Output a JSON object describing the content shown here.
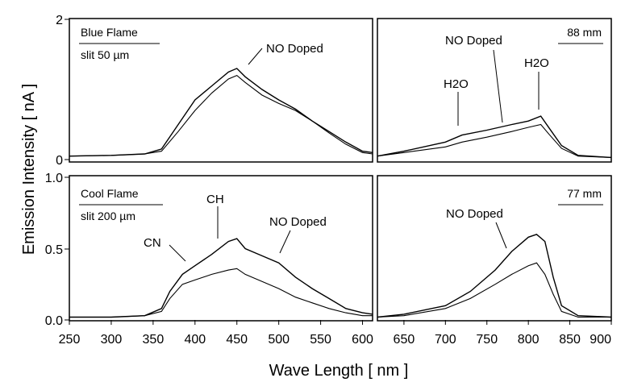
{
  "figure": {
    "ylabel": "Emission Intensity [ nA ]",
    "xlabel": "Wave Length [ nm ]",
    "x_ticks": [
      "250",
      "300",
      "350",
      "400",
      "450",
      "500",
      "550",
      "600",
      "650",
      "700",
      "750",
      "800",
      "850",
      "900"
    ]
  },
  "chart_data": [
    {
      "type": "line",
      "panel": "top-left",
      "x_range": [
        250,
        612
      ],
      "ylim": [
        0,
        2
      ],
      "y_tick_labels": [
        "0",
        "2"
      ],
      "box_label": [
        "Blue Flame",
        "slit 50 µm"
      ],
      "annotations": [
        "NO Doped"
      ],
      "series": [
        {
          "name": "NO Doped",
          "x": [
            250,
            300,
            340,
            360,
            380,
            400,
            420,
            440,
            450,
            460,
            480,
            500,
            520,
            540,
            560,
            580,
            600,
            612
          ],
          "y": [
            0.05,
            0.06,
            0.08,
            0.15,
            0.5,
            0.85,
            1.05,
            1.25,
            1.3,
            1.18,
            1.0,
            0.85,
            0.72,
            0.55,
            0.4,
            0.25,
            0.12,
            0.1
          ]
        },
        {
          "values_only": true,
          "x": [
            250,
            300,
            340,
            360,
            380,
            400,
            420,
            440,
            450,
            460,
            480,
            500,
            520,
            540,
            560,
            580,
            600,
            612
          ],
          "y": [
            0.05,
            0.06,
            0.08,
            0.12,
            0.4,
            0.7,
            0.95,
            1.15,
            1.2,
            1.1,
            0.92,
            0.8,
            0.7,
            0.55,
            0.38,
            0.22,
            0.1,
            0.08
          ]
        }
      ]
    },
    {
      "type": "line",
      "panel": "top-right",
      "x_range": [
        618,
        900
      ],
      "ylim": [
        0,
        2
      ],
      "box_label": [
        "88 mm"
      ],
      "annotations": [
        "NO Doped",
        "H2O",
        "H2O"
      ],
      "series": [
        {
          "name": "NO Doped",
          "x": [
            618,
            650,
            700,
            720,
            750,
            780,
            800,
            815,
            825,
            840,
            860,
            900
          ],
          "y": [
            0.05,
            0.12,
            0.25,
            0.35,
            0.42,
            0.5,
            0.55,
            0.62,
            0.45,
            0.2,
            0.06,
            0.03
          ]
        },
        {
          "values_only": true,
          "x": [
            618,
            650,
            700,
            720,
            750,
            780,
            800,
            815,
            825,
            840,
            860,
            900
          ],
          "y": [
            0.05,
            0.1,
            0.18,
            0.25,
            0.32,
            0.4,
            0.46,
            0.5,
            0.36,
            0.16,
            0.05,
            0.03
          ]
        }
      ]
    },
    {
      "type": "line",
      "panel": "bottom-left",
      "x_range": [
        250,
        612
      ],
      "ylim": [
        0,
        1.0
      ],
      "y_tick_labels": [
        "0.0",
        "0.5",
        "1.0"
      ],
      "box_label": [
        "Cool Flame",
        "slit 200 µm"
      ],
      "annotations": [
        "CN",
        "CH",
        "NO Doped"
      ],
      "series": [
        {
          "name": "NO Doped",
          "x": [
            250,
            300,
            340,
            360,
            370,
            385,
            400,
            420,
            440,
            450,
            460,
            480,
            500,
            520,
            540,
            560,
            580,
            600,
            612
          ],
          "y": [
            0.02,
            0.02,
            0.03,
            0.08,
            0.2,
            0.32,
            0.38,
            0.46,
            0.55,
            0.57,
            0.5,
            0.45,
            0.4,
            0.3,
            0.22,
            0.15,
            0.08,
            0.05,
            0.04
          ]
        },
        {
          "values_only": true,
          "x": [
            250,
            300,
            340,
            360,
            370,
            385,
            400,
            420,
            440,
            450,
            460,
            480,
            500,
            520,
            540,
            560,
            580,
            600,
            612
          ],
          "y": [
            0.02,
            0.02,
            0.03,
            0.06,
            0.15,
            0.25,
            0.28,
            0.32,
            0.35,
            0.36,
            0.32,
            0.27,
            0.22,
            0.16,
            0.12,
            0.08,
            0.05,
            0.03,
            0.03
          ]
        }
      ]
    },
    {
      "type": "line",
      "panel": "bottom-right",
      "x_range": [
        618,
        900
      ],
      "ylim": [
        0,
        1.0
      ],
      "box_label": [
        "77 mm"
      ],
      "annotations": [
        "NO Doped"
      ],
      "series": [
        {
          "name": "NO Doped",
          "x": [
            618,
            650,
            700,
            730,
            760,
            780,
            800,
            810,
            820,
            830,
            840,
            860,
            900
          ],
          "y": [
            0.02,
            0.04,
            0.1,
            0.2,
            0.35,
            0.48,
            0.58,
            0.6,
            0.55,
            0.3,
            0.1,
            0.03,
            0.02
          ]
        },
        {
          "values_only": true,
          "x": [
            618,
            650,
            700,
            730,
            760,
            780,
            800,
            810,
            820,
            830,
            840,
            860,
            900
          ],
          "y": [
            0.02,
            0.03,
            0.08,
            0.15,
            0.25,
            0.32,
            0.38,
            0.4,
            0.32,
            0.18,
            0.06,
            0.02,
            0.02
          ]
        }
      ]
    }
  ]
}
